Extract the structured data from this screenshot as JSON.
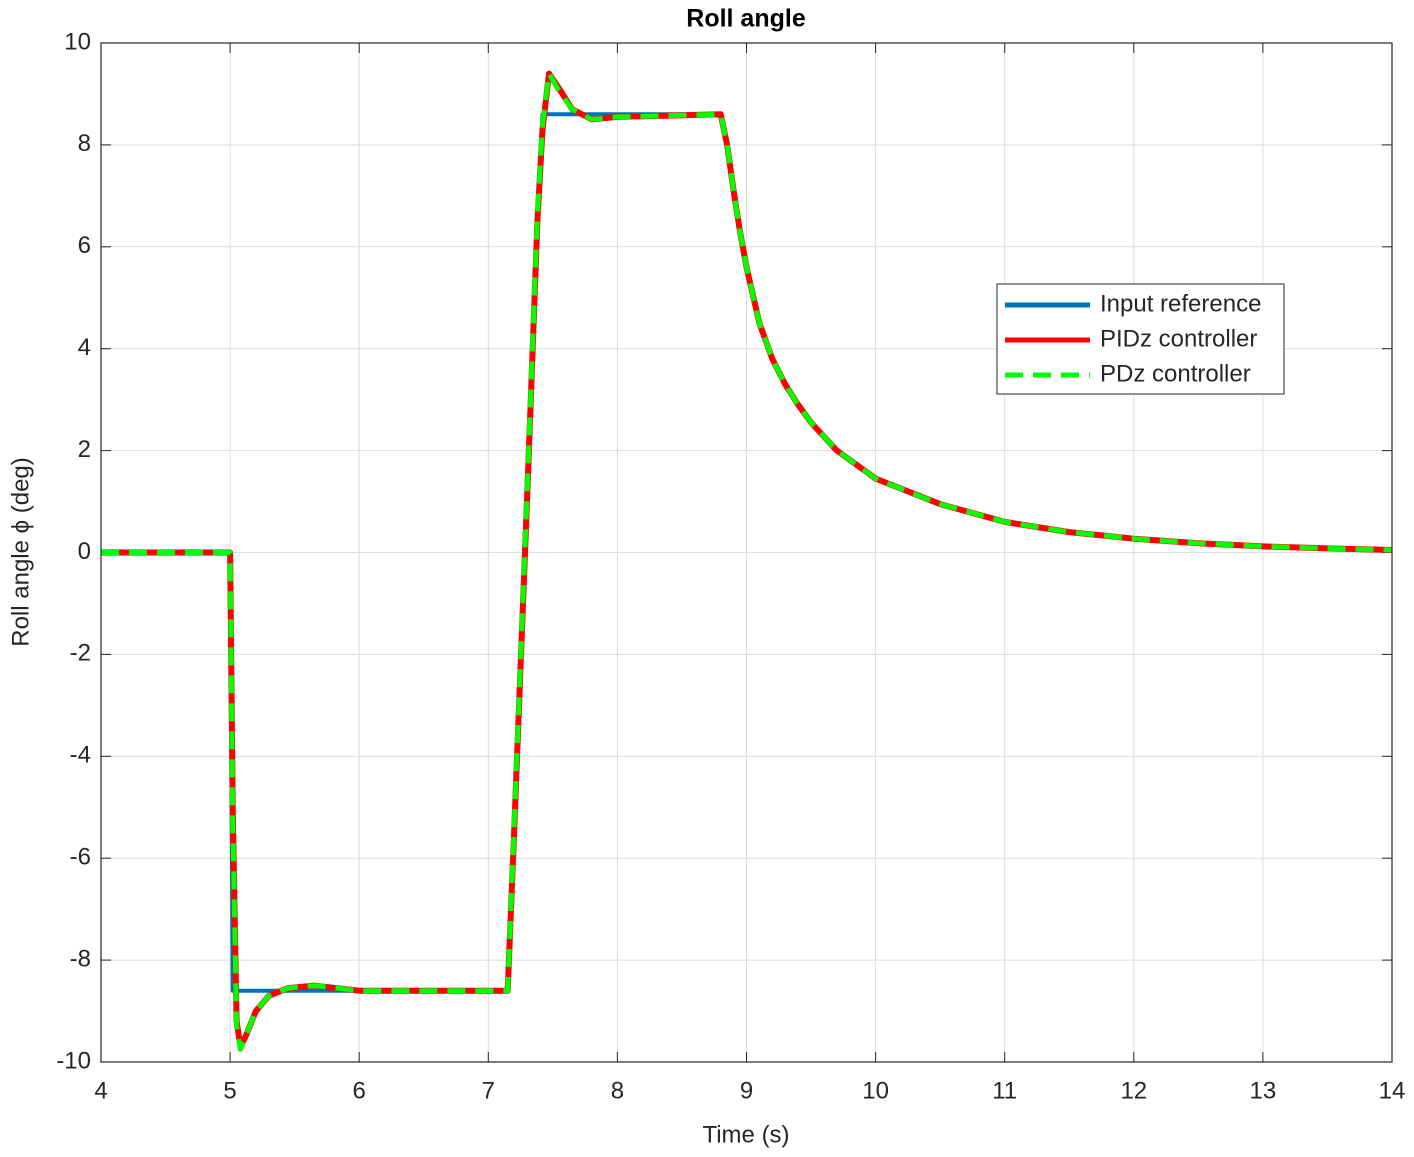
{
  "chart_data": {
    "type": "line",
    "title": "Roll angle",
    "xlabel": "Time (s)",
    "ylabel": "Roll angle ϕ (deg)",
    "x": [
      4,
      5,
      5.02,
      5.05,
      5.08,
      5.12,
      5.2,
      5.3,
      5.45,
      5.65,
      6,
      7,
      7.15,
      7.2,
      7.3,
      7.38,
      7.42,
      7.47,
      7.55,
      7.65,
      7.8,
      8,
      8.8,
      8.85,
      8.9,
      8.95,
      9.0,
      9.1,
      9.2,
      9.3,
      9.4,
      9.5,
      9.7,
      10,
      10.5,
      11,
      11.5,
      12,
      12.5,
      13,
      13.5,
      14
    ],
    "series": [
      {
        "name": "Input reference",
        "color": "#0072bd",
        "style": "solid",
        "values": [
          0,
          0,
          -8.6,
          -8.6,
          -8.6,
          -8.6,
          -8.6,
          -8.6,
          -8.6,
          -8.6,
          -8.6,
          -8.6,
          -8.6,
          -5.2,
          1.5,
          6.6,
          8.6,
          8.6,
          8.6,
          8.6,
          8.6,
          8.6,
          8.6,
          8.0,
          7.1,
          6.3,
          5.6,
          4.5,
          3.8,
          3.3,
          2.9,
          2.55,
          2.0,
          1.45,
          0.95,
          0.6,
          0.4,
          0.27,
          0.18,
          0.12,
          0.08,
          0.05
        ]
      },
      {
        "name": "PIDz controller",
        "color": "#ff0000",
        "style": "solid",
        "values": [
          0,
          0,
          -5,
          -9.2,
          -9.7,
          -9.5,
          -9.0,
          -8.7,
          -8.55,
          -8.5,
          -8.6,
          -8.6,
          -8.6,
          -5.5,
          1.0,
          6.5,
          8.3,
          9.4,
          9.1,
          8.7,
          8.5,
          8.55,
          8.6,
          8.0,
          7.1,
          6.3,
          5.6,
          4.5,
          3.8,
          3.3,
          2.9,
          2.55,
          2.0,
          1.45,
          0.95,
          0.6,
          0.4,
          0.27,
          0.18,
          0.12,
          0.08,
          0.05
        ]
      },
      {
        "name": "PDz controller",
        "color": "#00ff00",
        "style": "dashed",
        "values": [
          0,
          0,
          -5.2,
          -9.3,
          -9.75,
          -9.5,
          -9.0,
          -8.7,
          -8.55,
          -8.5,
          -8.6,
          -8.6,
          -8.6,
          -5.4,
          1.1,
          6.6,
          8.4,
          9.4,
          9.05,
          8.7,
          8.5,
          8.55,
          8.6,
          8.0,
          7.1,
          6.3,
          5.6,
          4.5,
          3.8,
          3.3,
          2.9,
          2.55,
          2.0,
          1.45,
          0.95,
          0.6,
          0.4,
          0.27,
          0.18,
          0.12,
          0.08,
          0.05
        ]
      }
    ],
    "xlim": [
      4,
      14
    ],
    "xticks": [
      4,
      5,
      6,
      7,
      8,
      9,
      10,
      11,
      12,
      13,
      14
    ],
    "ylim": [
      -10,
      10
    ],
    "yticks": [
      -10,
      -8,
      -6,
      -4,
      -2,
      0,
      2,
      4,
      6,
      8,
      10
    ],
    "grid": true,
    "legend": "right"
  }
}
